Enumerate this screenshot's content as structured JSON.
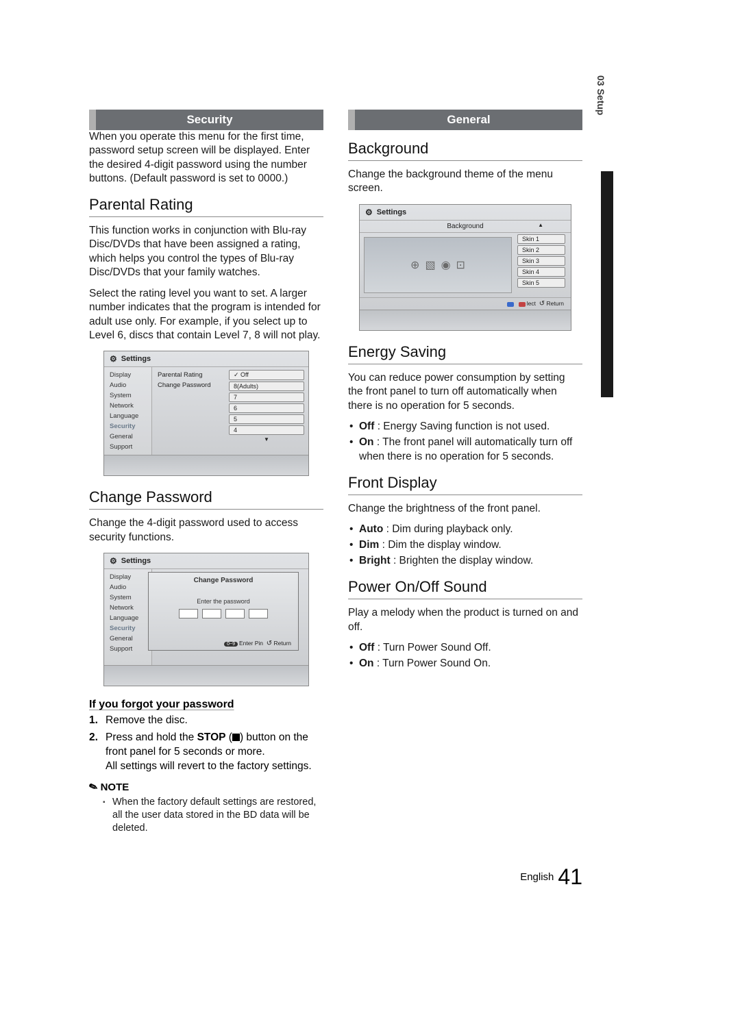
{
  "side_tab": "03   Setup",
  "footer": {
    "lang": "English",
    "page": "41"
  },
  "left": {
    "header": "Security",
    "intro": "When you operate this menu for the first time, password setup screen will be displayed. Enter the desired 4-digit password using the number buttons. (Default password is set to 0000.)",
    "parental": {
      "title": "Parental Rating",
      "p1": "This function works in conjunction with Blu-ray Disc/DVDs that have been assigned a rating, which helps you control the types of Blu-ray Disc/DVDs that your family watches.",
      "p2": "Select the rating level you want to set. A larger number indicates that the program is intended for adult use only. For example, if you select up to Level 6, discs that contain Level 7, 8 will not play."
    },
    "mock1": {
      "title": "Settings",
      "side": [
        "Display",
        "Audio",
        "System",
        "Network",
        "Language",
        "Security",
        "General",
        "Support"
      ],
      "side_selected_index": 5,
      "mid": [
        "Parental Rating",
        "Change Password"
      ],
      "opts": [
        "✓ Off",
        "8(Adults)",
        "7",
        "6",
        "5",
        "4"
      ]
    },
    "change_pw": {
      "title": "Change Password",
      "p": "Change the 4-digit password used to access security functions."
    },
    "mock2": {
      "title": "Settings",
      "side": [
        "Display",
        "Audio",
        "System",
        "Network",
        "Language",
        "Security",
        "General",
        "Support"
      ],
      "dialog_title": "Change Password",
      "hint": "Enter the password",
      "foot_pin": "0~9",
      "foot_enter": "Enter Pin",
      "foot_return": "Return"
    },
    "forgot": {
      "title": "If you forgot your password",
      "s1": "Remove the disc.",
      "s2a": "Press and hold the ",
      "s2b": "STOP",
      "s2c": " (",
      "s2d": ") button on the front panel for 5 seconds or more.",
      "s2e": "All settings will revert to the factory settings."
    },
    "note": {
      "head": "NOTE",
      "item": "When the factory default settings are restored, all the user data stored in the BD data will be deleted."
    }
  },
  "right": {
    "header": "General",
    "background": {
      "title": "Background",
      "p": "Change the background theme of the menu screen."
    },
    "mock3": {
      "title": "Settings",
      "subtitle": "Background",
      "skins": [
        "Skin 1",
        "Skin 2",
        "Skin 3",
        "Skin 4",
        "Skin 5"
      ],
      "foot_select": "lect",
      "foot_return": "Return"
    },
    "energy": {
      "title": "Energy Saving",
      "p": "You can reduce power consumption by setting the front panel to turn off automatically when there is no operation for 5 seconds.",
      "b1a": "Off",
      "b1b": " : Energy Saving function is not used.",
      "b2a": "On",
      "b2b": " : The front panel will automatically turn off when there is no operation for 5 seconds."
    },
    "front": {
      "title": "Front Display",
      "p": "Change the brightness of the front panel.",
      "b1a": "Auto",
      "b1b": " : Dim during playback only.",
      "b2a": "Dim",
      "b2b": " : Dim the display window.",
      "b3a": "Bright",
      "b3b": " : Brighten the display window."
    },
    "power": {
      "title": "Power On/Off Sound",
      "p": "Play a melody when the product is turned on and off.",
      "b1a": "Off",
      "b1b": " : Turn Power Sound Off.",
      "b2a": "On",
      "b2b": " : Turn Power Sound On."
    }
  }
}
